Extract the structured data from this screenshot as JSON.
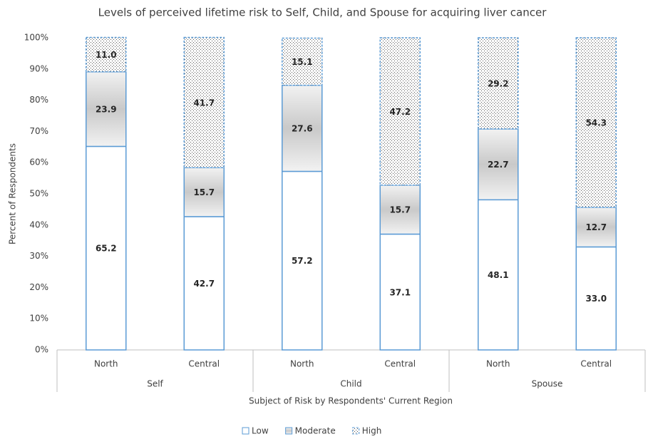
{
  "chart_data": {
    "type": "stacked_bar",
    "title": "Levels of perceived lifetime risk to Self, Child, and Spouse for acquiring liver cancer",
    "x_label": "Subject of Risk by Respondents' Current Region",
    "y_label": "Percent of Respondents",
    "categories": [
      "North",
      "Central",
      "North",
      "Central",
      "North",
      "Central"
    ],
    "groups": [
      "Self",
      "Child",
      "Spouse"
    ],
    "series": [
      {
        "name": "Low",
        "color": "#5b9bd5",
        "values": [
          65.2,
          42.7,
          57.2,
          37.1,
          48.1,
          33.0
        ],
        "value_labels": [
          "65.2",
          "42.7",
          "57.2",
          "37.1",
          "48.1",
          "33.0"
        ]
      },
      {
        "name": "Moderate",
        "color": "#5b9bd5",
        "values": [
          23.9,
          15.7,
          27.6,
          15.7,
          22.7,
          12.7
        ],
        "value_labels": [
          "23.9",
          "15.7",
          "27.6",
          "15.7",
          "22.7",
          "12.7"
        ]
      },
      {
        "name": "High",
        "color": "#5b9bd5",
        "values": [
          11.0,
          41.7,
          15.1,
          47.2,
          29.2,
          54.3
        ],
        "value_labels": [
          "11.0",
          "41.7",
          "15.1",
          "47.2",
          "29.2",
          "54.3"
        ]
      }
    ],
    "ylim": [
      0,
      100
    ],
    "yticks": [
      {
        "value": 0,
        "label": "0%"
      },
      {
        "value": 10,
        "label": "10%"
      },
      {
        "value": 20,
        "label": "20%"
      },
      {
        "value": 30,
        "label": "30%"
      },
      {
        "value": 40,
        "label": "40%"
      },
      {
        "value": 50,
        "label": "50%"
      },
      {
        "value": 60,
        "label": "60%"
      },
      {
        "value": 70,
        "label": "70%"
      },
      {
        "value": 80,
        "label": "80%"
      },
      {
        "value": 90,
        "label": "90%"
      },
      {
        "value": 100,
        "label": "100%"
      }
    ],
    "grid": false,
    "legend": "bottom"
  }
}
